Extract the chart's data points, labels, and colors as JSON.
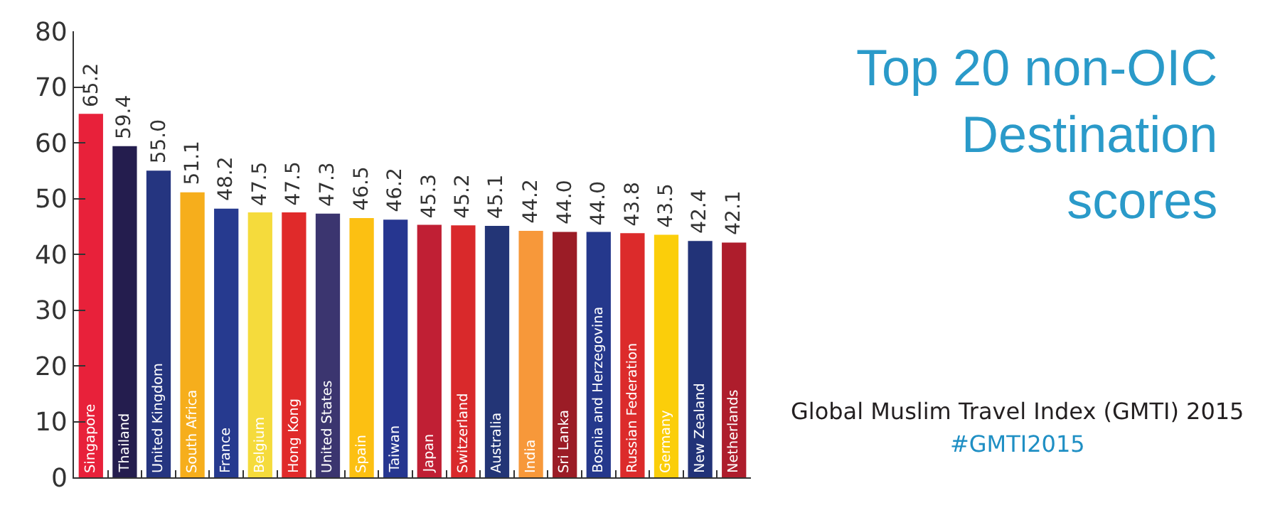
{
  "chart_data": {
    "type": "bar",
    "title": "Top 20 non-OIC Destination scores",
    "categories": [
      "Singapore",
      "Thailand",
      "United Kingdom",
      "South Africa",
      "France",
      "Belgium",
      "Hong Kong",
      "United States",
      "Spain",
      "Taiwan",
      "Japan",
      "Switzerland",
      "Australia",
      "India",
      "Sri Lanka",
      "Bosnia and Herzegovina",
      "Russian Federation",
      "Germany",
      "New Zealand",
      "Netherlands"
    ],
    "values": [
      65.2,
      59.4,
      55.0,
      51.1,
      48.2,
      47.5,
      47.5,
      47.3,
      46.5,
      46.2,
      45.3,
      45.2,
      45.1,
      44.2,
      44.0,
      44.0,
      43.8,
      43.5,
      42.4,
      42.1
    ],
    "value_labels": [
      "65.2",
      "59.4",
      "55.0",
      "51.1",
      "48.2",
      "47.5",
      "47.5",
      "47.3",
      "46.5",
      "46.2",
      "45.3",
      "45.2",
      "45.1",
      "44.2",
      "44.0",
      "44.0",
      "43.8",
      "43.5",
      "42.4",
      "42.1"
    ],
    "colors": [
      "#e8213a",
      "#241d4e",
      "#253580",
      "#f6ae1c",
      "#263a8f",
      "#f5db3c",
      "#e02a2a",
      "#3b356f",
      "#fcc012",
      "#263690",
      "#c01f34",
      "#d9292b",
      "#233576",
      "#f7983a",
      "#9b1c26",
      "#25388c",
      "#dc2b2b",
      "#fbce0a",
      "#223378",
      "#ae1d2c"
    ],
    "ylim": [
      0,
      80
    ],
    "yticks": [
      0,
      10,
      20,
      30,
      40,
      50,
      60,
      70,
      80
    ],
    "annotations": [
      "Global Muslim Travel Index (GMTI) 2015",
      "#GMTI2015"
    ]
  }
}
